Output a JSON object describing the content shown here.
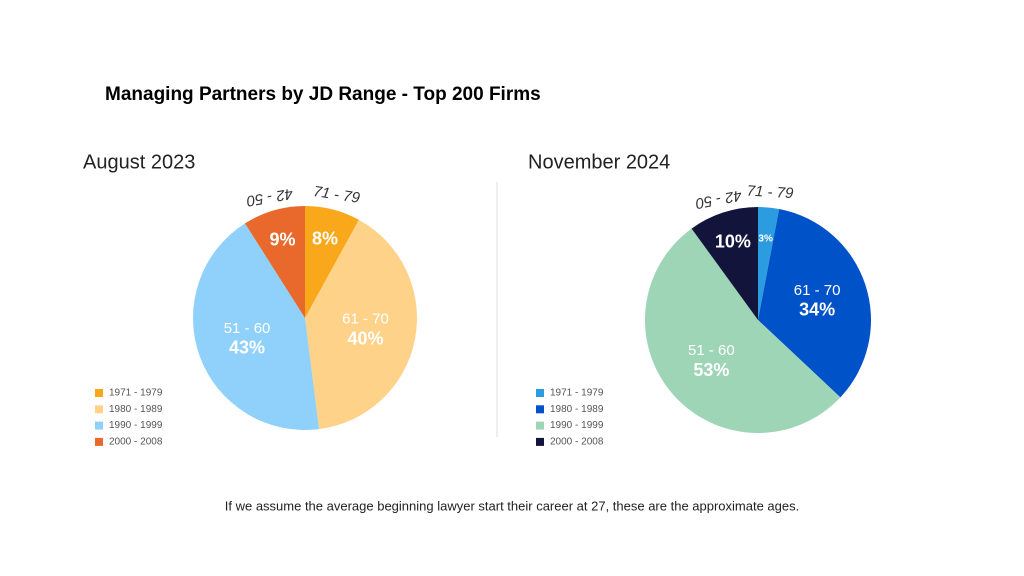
{
  "title": "Managing Partners by JD Range - Top 200 Firms",
  "note": "If we assume the average beginning lawyer start their career at 27, these are the approximate ages.",
  "chart_data": [
    {
      "type": "pie",
      "title": "August 2023",
      "categories": [
        "1971 - 1979",
        "1980 - 1989",
        "1990 - 1999",
        "2000 - 2008"
      ],
      "slice_labels": [
        "71 - 79",
        "61 - 70",
        "51 - 60",
        "42 - 50"
      ],
      "values": [
        8,
        40,
        43,
        9
      ],
      "value_labels": [
        "8%",
        "40%",
        "43%",
        "9%"
      ],
      "colors": [
        "#f9a81b",
        "#ffd28a",
        "#8fd1fb",
        "#e9692c"
      ]
    },
    {
      "type": "pie",
      "title": "November 2024",
      "categories": [
        "1971 - 1979",
        "1980 - 1989",
        "1990 - 1999",
        "2000 - 2008"
      ],
      "slice_labels": [
        "71 - 79",
        "61 - 70",
        "51 - 60",
        "42 - 50"
      ],
      "values": [
        3,
        34,
        53,
        10
      ],
      "value_labels": [
        "3%",
        "34%",
        "53%",
        "10%"
      ],
      "colors": [
        "#2b9ce0",
        "#0052c9",
        "#9dd5b6",
        "#13143b"
      ]
    }
  ]
}
